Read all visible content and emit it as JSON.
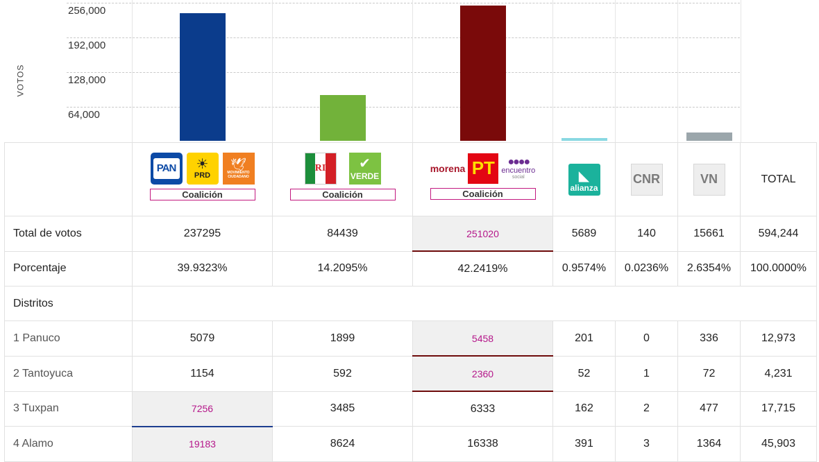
{
  "chart": {
    "axis_label": "VOTOS",
    "ticks": [
      "256,000",
      "192,000",
      "128,000",
      "64,000"
    ],
    "colors": {
      "pan_coalition": "#0b3c8c",
      "pri_coalition": "#72b23a",
      "morena_coalition": "#7a0a0a",
      "nueva_alianza": "#89d8e2",
      "vn": "#9ba6ab"
    }
  },
  "chart_data": {
    "type": "bar",
    "ylabel": "VOTOS",
    "yticks": [
      64000,
      128000,
      192000,
      256000
    ],
    "ylim": [
      0,
      256000
    ],
    "categories": [
      "PAN-PRD-MC",
      "PRI-PVEM",
      "MORENA-PT-PES",
      "Nueva Alianza",
      "CNR",
      "VN"
    ],
    "values": [
      237295,
      84439,
      251020,
      5689,
      140,
      15661
    ]
  },
  "logos": {
    "pan": "PAN",
    "prd_symbol": "☀",
    "prd": "PRD",
    "mc_symbol": "🕊",
    "mc": "MOVIMIENTO CIUDADANO",
    "pri": "PRI",
    "pri_middle": "RI",
    "verde_symbol": "✔",
    "verde": "VERDE",
    "morena": "morena",
    "pt": "PT",
    "es_dots": "●●●●",
    "es": "encuentro",
    "es_small": "social",
    "na_symbol": "◣",
    "na": "alianza",
    "cnr": "CNR",
    "vn": "VN",
    "coalicion": "Coalición"
  },
  "table": {
    "total_header": "TOTAL",
    "total_votes": {
      "label": "Total de votos",
      "values": [
        "237295",
        "84439",
        "251020",
        "5689",
        "140",
        "15661",
        "594,244"
      ]
    },
    "percentage": {
      "label": "Porcentaje",
      "values": [
        "39.9323%",
        "14.2095%",
        "42.2419%",
        "0.9574%",
        "0.0236%",
        "2.6354%",
        "100.0000%"
      ]
    },
    "districts_label": "Distritos",
    "districts": [
      {
        "name": "1 Panuco",
        "values": [
          "5079",
          "1899",
          "5458",
          "201",
          "0",
          "336",
          "12,973"
        ]
      },
      {
        "name": "2 Tantoyuca",
        "values": [
          "1154",
          "592",
          "2360",
          "52",
          "1",
          "72",
          "4,231"
        ]
      },
      {
        "name": "3 Tuxpan",
        "values": [
          "7256",
          "3485",
          "6333",
          "162",
          "2",
          "477",
          "17,715"
        ]
      },
      {
        "name": "4 Alamo",
        "values": [
          "19183",
          "8624",
          "16338",
          "391",
          "3",
          "1364",
          "45,903"
        ]
      }
    ]
  }
}
